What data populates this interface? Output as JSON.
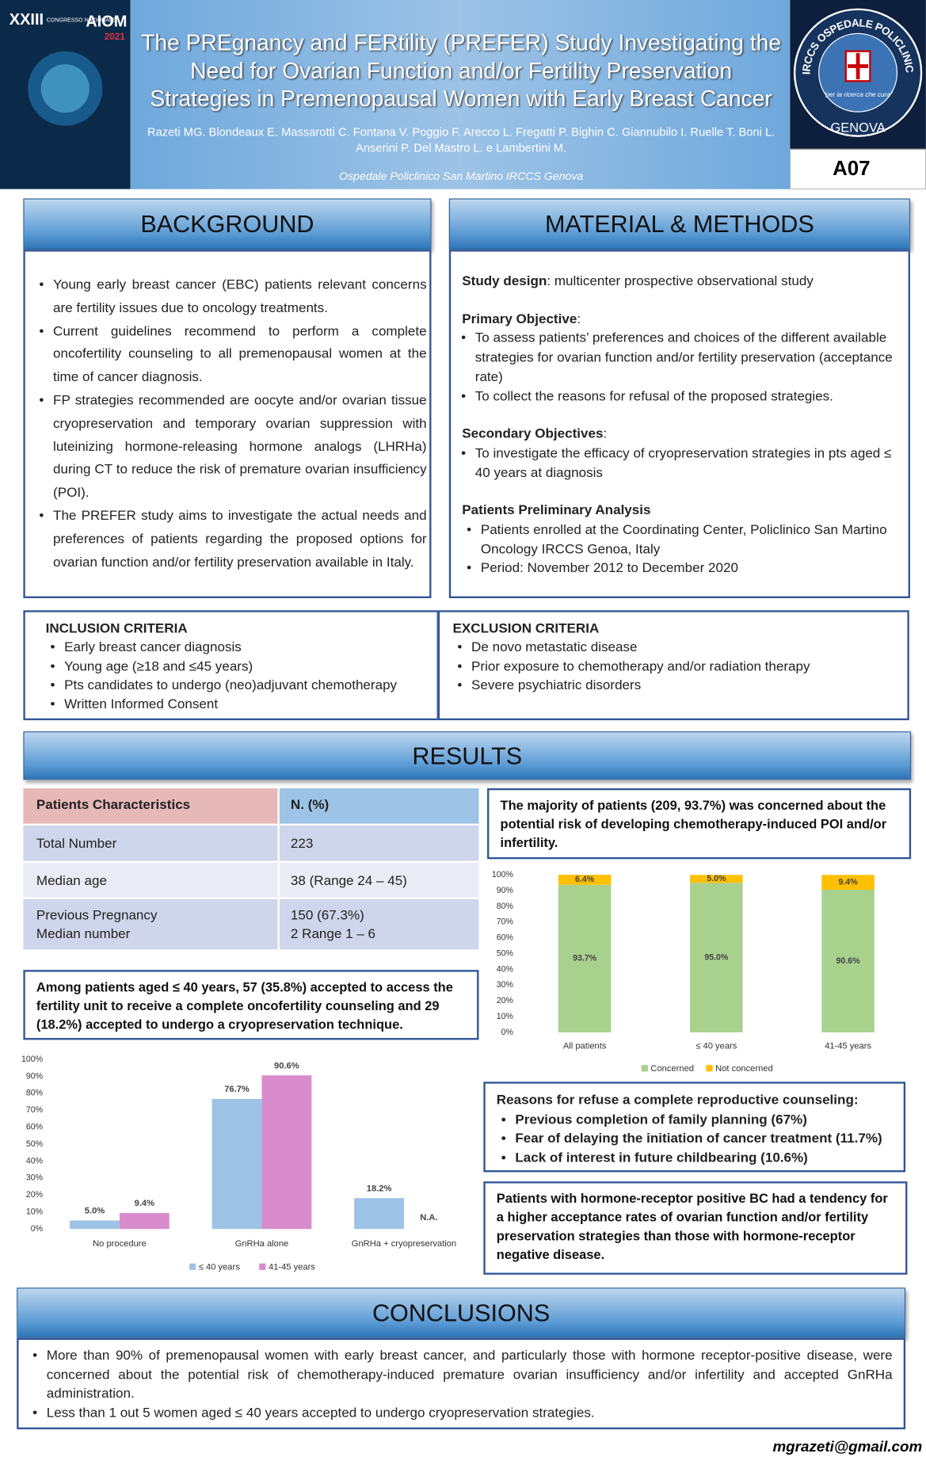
{
  "header": {
    "title": "The PREgnancy and FERtility (PREFER) Study Investigating the Need for Ovarian Function and/or Fertility Preservation Strategies in Premenopausal Women with Early Breast Cancer",
    "authors": "Razeti MG. Blondeaux E. Massarotti C. Fontana V. Poggio F. Arecco L. Fregatti P. Bighin C. Giannubilo I. Ruelle T. Boni L. Anserini P. Del Mastro L. e Lambertini M.",
    "affiliation": "Ospedale Policlinico San Martino IRCCS Genova",
    "code": "A07"
  },
  "logos": {
    "left": {
      "edition": "XXIII",
      "congress": "CONGRESSO NAZIONALE",
      "name": "AIOM",
      "year": "2021"
    },
    "right": {
      "ring": "IRCCS OSPEDALE POLICLINICO SAN MARTINO",
      "motto": "“per la ricerca che cura”",
      "city": "GENOVA"
    }
  },
  "background": {
    "title": "BACKGROUND",
    "items": [
      "Young early breast cancer (EBC) patients relevant concerns are fertility issues due to oncology treatments.",
      "Current guidelines recommend to perform a complete oncofertility counseling to all premenopausal women at the time of cancer diagnosis.",
      "FP strategies recommended are oocyte and/or ovarian tissue cryopreservation and temporary ovarian suppression with luteinizing hormone-releasing hormone analogs (LHRHa) during CT to reduce the risk of premature ovarian insufficiency (POI).",
      "The PREFER study aims to investigate the actual needs and preferences of patients regarding the proposed options for ovarian function and/or fertility preservation available in Italy."
    ]
  },
  "methods": {
    "title": "MATERIAL & METHODS",
    "design": {
      "label": "Study design",
      "text": ": multicenter prospective observational study"
    },
    "primary": {
      "label": "Primary Objective",
      "text": ":",
      "items": [
        "To assess patients’ preferences and choices of the different available strategies for ovarian function and/or fertility preservation (acceptance rate)",
        "To collect the reasons for refusal of the proposed strategies."
      ]
    },
    "secondary": {
      "label": "Secondary Objectives",
      "text": ":",
      "items": [
        "To investigate the efficacy of cryopreservation strategies in pts aged ≤ 40 years at diagnosis"
      ]
    },
    "analysis": {
      "label": "Patients Preliminary Analysis",
      "items": [
        "Patients  enrolled at the Coordinating Center, Policlinico San Martino Oncology IRCCS Genoa, Italy",
        "Period: November 2012 to December 2020"
      ]
    }
  },
  "inclusion": {
    "title": "INCLUSION CRITERIA",
    "items": [
      "Early breast cancer diagnosis",
      "Young age (≥18  and ≤45 years)",
      "Pts candidates to undergo (neo)adjuvant chemotherapy",
      "Written Informed Consent"
    ]
  },
  "exclusion": {
    "title": "EXCLUSION CRITERIA",
    "items": [
      "De novo metastatic disease",
      "Prior exposure to chemotherapy and/or radiation therapy",
      "Severe psychiatric disorders"
    ]
  },
  "results": {
    "title": "RESULTS",
    "table": {
      "header": [
        "Patients Characteristics",
        "N.  (%)"
      ],
      "rows": [
        [
          [
            "Total Number"
          ],
          [
            "223"
          ]
        ],
        [
          [
            "Median age"
          ],
          [
            "38 (Range 24 – 45)"
          ]
        ],
        [
          [
            "Previous Pregnancy",
            "Median number"
          ],
          [
            "150 (67.3%)",
            "2  Range 1 – 6"
          ]
        ]
      ]
    },
    "concern_box": "The majority of patients (209, 93.7%) was concerned about the potential risk of developing chemotherapy-induced POI and/or infertility.",
    "acceptance_box": "Among patients aged ≤ 40 years, 57 (35.8%) accepted to access the fertility unit to receive a complete oncofertility counseling and 29 (18.2%) accepted to undergo a cryopreservation technique.",
    "reasons": {
      "title": "Reasons for refuse a complete reproductive counseling:",
      "items": [
        "Previous completion of family planning (67%)",
        "Fear of delaying the initiation of cancer treatment (11.7%)",
        "Lack of interest in future childbearing (10.6%)"
      ]
    },
    "hormone_box": "Patients with hormone-receptor positive BC had a tendency for a higher acceptance rates of ovarian function and/or fertility preservation strategies than those with hormone-receptor negative disease."
  },
  "conclusions": {
    "title": "CONCLUSIONS",
    "items": [
      "More than 90% of premenopausal women with early breast cancer, and particularly those with hormone receptor-positive disease, were concerned about the potential risk of chemotherapy-induced premature ovarian insufficiency and/or infertility and accepted GnRHa administration.",
      "Less than 1 out 5 women aged ≤ 40 years accepted to undergo cryopreservation strategies."
    ]
  },
  "contact": "mgrazeti@gmail.com",
  "chart_data": [
    {
      "type": "bar",
      "stacked": true,
      "categories": [
        "All patients",
        "≤ 40 years",
        "41-45 years"
      ],
      "series": [
        {
          "name": "Concerned",
          "color": "#a9d18e",
          "values": [
            93.7,
            95.0,
            90.6
          ],
          "value_labels": [
            "93.7%",
            "95.0%",
            "90.6%"
          ]
        },
        {
          "name": "Not concerned",
          "color": "#ffc000",
          "values": [
            6.4,
            5.0,
            9.4
          ],
          "value_labels": [
            "6.4%",
            "5.0%",
            "9.4%"
          ]
        }
      ],
      "ylim": [
        0,
        100
      ],
      "yticks": [
        {
          "value": 0,
          "label": "0%"
        },
        {
          "value": 10,
          "label": "10%"
        },
        {
          "value": 20,
          "label": "20%"
        },
        {
          "value": 30,
          "label": "30%"
        },
        {
          "value": 40,
          "label": "40%"
        },
        {
          "value": 50,
          "label": "50%"
        },
        {
          "value": 60,
          "label": "60%"
        },
        {
          "value": 70,
          "label": "70%"
        },
        {
          "value": 80,
          "label": "80%"
        },
        {
          "value": 90,
          "label": "90%"
        },
        {
          "value": 100,
          "label": "100%"
        }
      ],
      "legend": "bottom"
    },
    {
      "type": "bar",
      "stacked": false,
      "categories": [
        "No procedure",
        "GnRHa alone",
        "GnRHa + cryopreservation"
      ],
      "series": [
        {
          "name": "≤ 40 years",
          "color": "#9dc3e6",
          "values": [
            5.0,
            76.7,
            18.2
          ],
          "value_labels": [
            "5.0%",
            "76.7%",
            "18.2%"
          ]
        },
        {
          "name": "41-45 years",
          "color": "#d98ccc",
          "values": [
            9.4,
            90.6,
            null
          ],
          "value_labels": [
            "9.4%",
            "90.6%",
            "N.A."
          ]
        }
      ],
      "ylim": [
        0,
        100
      ],
      "yticks": [
        {
          "value": 0,
          "label": "0%"
        },
        {
          "value": 10,
          "label": "10%"
        },
        {
          "value": 20,
          "label": "20%"
        },
        {
          "value": 30,
          "label": "30%"
        },
        {
          "value": 40,
          "label": "40%"
        },
        {
          "value": 50,
          "label": "50%"
        },
        {
          "value": 60,
          "label": "60%"
        },
        {
          "value": 70,
          "label": "70%"
        },
        {
          "value": 80,
          "label": "80%"
        },
        {
          "value": 90,
          "label": "90%"
        },
        {
          "value": 100,
          "label": "100%"
        }
      ],
      "legend": "bottom"
    }
  ]
}
